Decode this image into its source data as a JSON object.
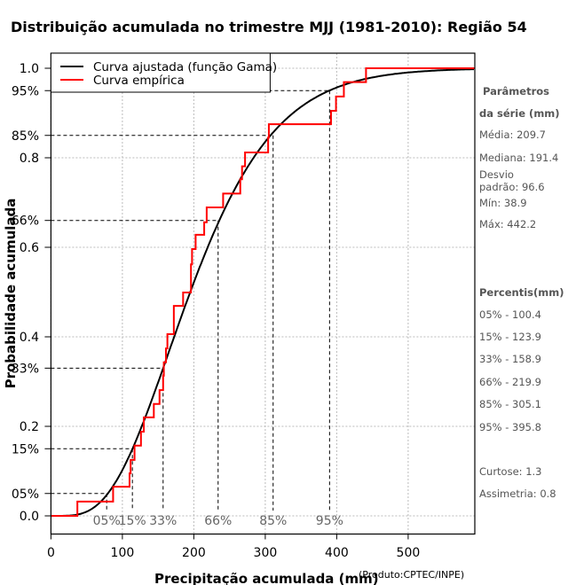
{
  "chart_data": {
    "type": "line",
    "title": "Distribuição acumulada no trimestre MJJ (1981-2010): Região 54",
    "xlabel": "Precipitação acumulada (mm)",
    "ylabel": "Probabilidade acumulada",
    "credit": "(Produto:CPTEC/INPE)",
    "xlim": [
      0,
      593
    ],
    "ylim": [
      0,
      1
    ],
    "x_ticks": [
      "0",
      "100",
      "200",
      "300",
      "400",
      "500"
    ],
    "x_tick_values": [
      0,
      100,
      200,
      300,
      400,
      500
    ],
    "y_ticks": [
      "0.0",
      "0.2",
      "0.4",
      "0.6",
      "0.8",
      "1.0"
    ],
    "y_tick_values": [
      0,
      0.2,
      0.4,
      0.6,
      0.8,
      1.0
    ],
    "grid": true,
    "legend": {
      "position": "top-left",
      "entries": [
        {
          "label": "Curva ajustada (função Gama)",
          "color": "#000000"
        },
        {
          "label": "Curva empírica",
          "color": "#ff0000"
        }
      ]
    },
    "gamma_fit": {
      "shape": 4.71,
      "scale": 44.5
    },
    "empirical_steps": [
      [
        37,
        0.032
      ],
      [
        87,
        0.065
      ],
      [
        110,
        0.095
      ],
      [
        111.5,
        0.125
      ],
      [
        117,
        0.157
      ],
      [
        126,
        0.188
      ],
      [
        130,
        0.22
      ],
      [
        144,
        0.25
      ],
      [
        152,
        0.281
      ],
      [
        157,
        0.313
      ],
      [
        158,
        0.343
      ],
      [
        161,
        0.374
      ],
      [
        163,
        0.406
      ],
      [
        172,
        0.469
      ],
      [
        185,
        0.499
      ],
      [
        196,
        0.562
      ],
      [
        197.5,
        0.596
      ],
      [
        202.5,
        0.628
      ],
      [
        214.5,
        0.656
      ],
      [
        218,
        0.689
      ],
      [
        241,
        0.72
      ],
      [
        265,
        0.752
      ],
      [
        267.5,
        0.781
      ],
      [
        271.7,
        0.812
      ],
      [
        304,
        0.845
      ],
      [
        305,
        0.875
      ],
      [
        392,
        0.905
      ],
      [
        399,
        0.937
      ],
      [
        410,
        0.969
      ],
      [
        441,
        1.0
      ]
    ],
    "percentile_marks": [
      {
        "label": "05%",
        "prob": 0.05,
        "x": 78
      },
      {
        "label": "15%",
        "prob": 0.15,
        "x": 114
      },
      {
        "label": "33%",
        "prob": 0.33,
        "x": 157
      },
      {
        "label": "66%",
        "prob": 0.66,
        "x": 234
      },
      {
        "label": "85%",
        "prob": 0.85,
        "x": 311
      },
      {
        "label": "95%",
        "prob": 0.95,
        "x": 390
      }
    ]
  },
  "side_panel": {
    "params_title_1": "Parâmetros",
    "params_title_2": "da série (mm)",
    "media": "Média: 209.7",
    "mediana": "Mediana: 191.4",
    "desvio_1": "Desvio",
    "desvio_2": "padrão: 96.6",
    "min": "Mín: 38.9",
    "max": "Máx: 442.2",
    "percentis_title": "Percentis(mm)",
    "percentis": [
      "05% - 100.4",
      "15% - 123.9",
      "33% - 158.9",
      "66% - 219.9",
      "85% - 305.1",
      "95% - 395.8"
    ],
    "curtose": "Curtose: 1.3",
    "assimetria": "Assimetria: 0.8"
  }
}
